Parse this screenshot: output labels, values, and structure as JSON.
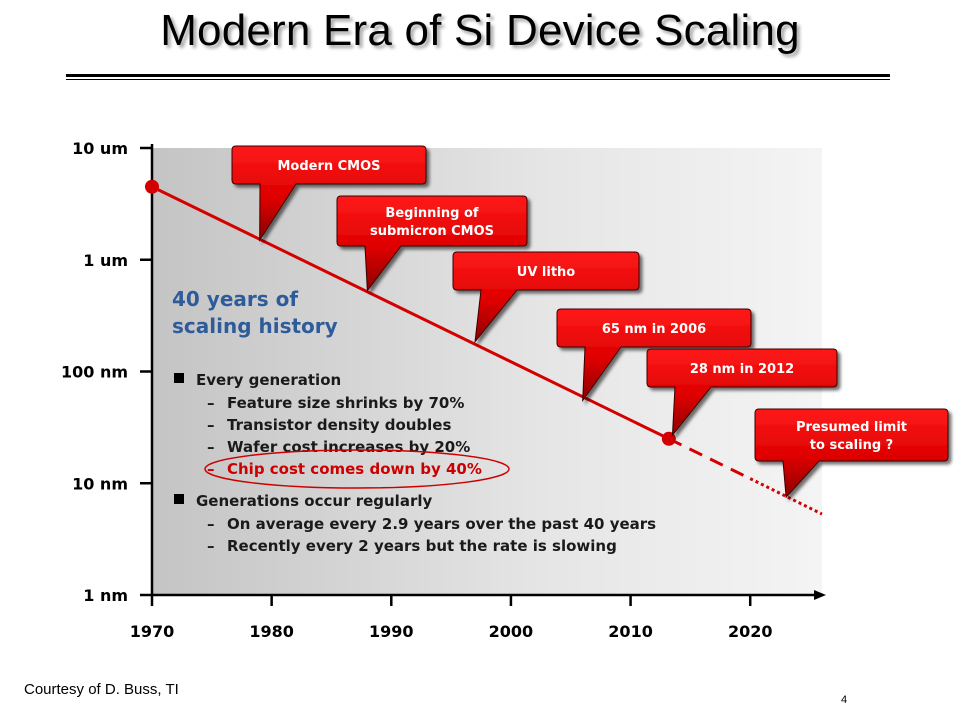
{
  "slide": {
    "title": "Modern Era of Si Device Scaling",
    "courtesy": "Courtesy of D. Buss, TI",
    "page_number": "4"
  },
  "colors": {
    "trend": "#d40000",
    "callout": "#e00000",
    "heading": "#2e5c9a",
    "highlight": "#cc0000"
  },
  "chart_data": {
    "type": "line",
    "title": "",
    "xlabel": "",
    "ylabel": "",
    "x_ticks": [
      1970,
      1980,
      1990,
      2000,
      2010,
      2020
    ],
    "y_ticks": [
      {
        "value": 10000,
        "label": "10 um"
      },
      {
        "value": 1000,
        "label": "1 um"
      },
      {
        "value": 100,
        "label": "100 nm"
      },
      {
        "value": 10,
        "label": "10 nm"
      },
      {
        "value": 1,
        "label": "1 nm"
      }
    ],
    "xlim": [
      1970,
      2026
    ],
    "ylim": [
      1,
      10000
    ],
    "y_scale": "log",
    "grid": false,
    "series": [
      {
        "style": "solid",
        "x": [
          1970,
          2013.2
        ],
        "y": [
          4500,
          25
        ]
      },
      {
        "style": "dashed",
        "x": [
          2013.2,
          2020
        ],
        "y": [
          25,
          11
        ]
      },
      {
        "style": "dotted",
        "x": [
          2020,
          2026
        ],
        "y": [
          11,
          5.3
        ]
      }
    ],
    "markers": [
      {
        "x": 1970,
        "y": 4500
      },
      {
        "x": 2013.2,
        "y": 25
      }
    ],
    "callouts": [
      {
        "text": [
          "Modern CMOS"
        ],
        "x": 1979,
        "y": 1500
      },
      {
        "text": [
          "Beginning of",
          "submicron CMOS"
        ],
        "x": 1988,
        "y": 530
      },
      {
        "text": [
          "UV litho"
        ],
        "x": 1997,
        "y": 185
      },
      {
        "text": [
          "65 nm in 2006"
        ],
        "x": 2006,
        "y": 55
      },
      {
        "text": [
          "28 nm in 2012"
        ],
        "x": 2013.5,
        "y": 27
      },
      {
        "text": [
          "Presumed limit",
          "to scaling ?"
        ],
        "x": 2023,
        "y": 7.5
      }
    ],
    "annotation": {
      "heading": [
        "40 years of",
        "scaling history"
      ],
      "bullets": [
        {
          "text": "Every generation",
          "subitems": [
            {
              "text": "Feature size shrinks by 70%",
              "highlight": false
            },
            {
              "text": "Transistor density doubles",
              "highlight": false
            },
            {
              "text": "Wafer cost increases by 20%",
              "highlight": false
            },
            {
              "text": "Chip cost comes down by 40%",
              "highlight": true
            }
          ]
        },
        {
          "text": "Generations occur regularly",
          "subitems": [
            {
              "text": "On average every 2.9 years over the past 40 years",
              "highlight": false
            },
            {
              "text": "Recently every 2 years but the rate is slowing",
              "highlight": false
            }
          ]
        }
      ]
    }
  }
}
